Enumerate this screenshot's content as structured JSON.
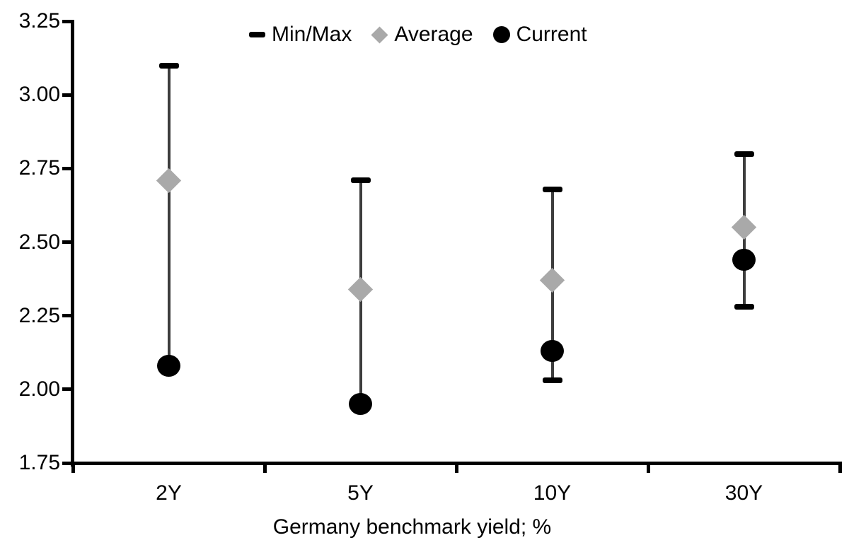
{
  "chart_data": {
    "type": "scatter",
    "subtype": "min-max-range",
    "categories": [
      "2Y",
      "5Y",
      "10Y",
      "30Y"
    ],
    "series": [
      {
        "name": "Min/Max",
        "marker": "dash",
        "max": [
          3.1,
          2.71,
          2.68,
          2.8
        ],
        "min": [
          2.08,
          1.95,
          2.03,
          2.28
        ],
        "min_cap_visible": [
          false,
          false,
          true,
          true
        ]
      },
      {
        "name": "Average",
        "marker": "diamond",
        "values": [
          2.71,
          2.34,
          2.37,
          2.55
        ]
      },
      {
        "name": "Current",
        "marker": "circle",
        "values": [
          2.08,
          1.95,
          2.13,
          2.44
        ]
      }
    ],
    "legend": [
      {
        "label": "Min/Max",
        "marker": "dash"
      },
      {
        "label": "Average",
        "marker": "diamond"
      },
      {
        "label": "Current",
        "marker": "circle"
      }
    ],
    "legend_position": "top",
    "title": "",
    "xlabel": "Germany benchmark yield; %",
    "ylabel": "",
    "ylim": [
      1.75,
      3.25
    ],
    "ytick_step": 0.25,
    "yticks": [
      "3.25",
      "3.00",
      "2.75",
      "2.50",
      "2.25",
      "2.00",
      "1.75"
    ],
    "grid": false
  },
  "colors": {
    "background": "#ffffff",
    "axis": "#000000",
    "text": "#000000",
    "range_line": "#3d3d3d",
    "minmax_cap": "#000000",
    "average_marker": "#a9a9a9",
    "current_marker": "#000000"
  }
}
